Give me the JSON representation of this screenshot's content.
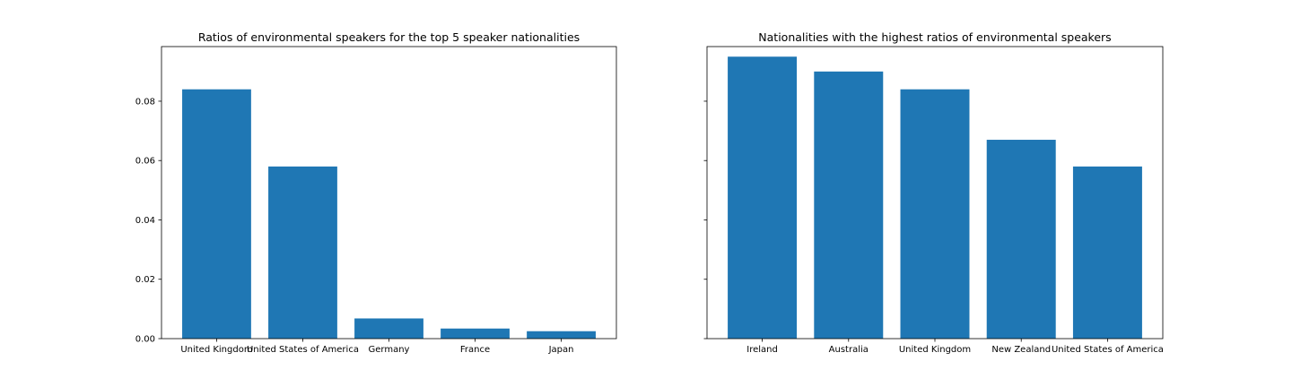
{
  "chart_data": [
    {
      "type": "bar",
      "title": "Ratios of environmental speakers for the top 5 speaker nationalities",
      "categories": [
        "United Kingdom",
        "United States of America",
        "Germany",
        "France",
        "Japan"
      ],
      "values": [
        0.084,
        0.058,
        0.0068,
        0.0034,
        0.0025
      ],
      "ylim": [
        0,
        0.0984
      ],
      "yticks": [
        0.0,
        0.02,
        0.04,
        0.06,
        0.08
      ],
      "ytick_labels": [
        "0.00",
        "0.02",
        "0.04",
        "0.06",
        "0.08"
      ],
      "xlabel": "",
      "ylabel": "",
      "color": "#1f77b4"
    },
    {
      "type": "bar",
      "title": "Nationalities with the highest ratios of environmental speakers",
      "categories": [
        "Ireland",
        "Australia",
        "United Kingdom",
        "New Zealand",
        "United States of America"
      ],
      "values": [
        0.095,
        0.09,
        0.084,
        0.067,
        0.058
      ],
      "ylim": [
        0,
        0.0984
      ],
      "yticks": [
        0.0,
        0.02,
        0.04,
        0.06,
        0.08
      ],
      "ytick_labels": [
        "",
        "",
        "",
        "",
        ""
      ],
      "xlabel": "",
      "ylabel": "",
      "color": "#1f77b4"
    }
  ]
}
